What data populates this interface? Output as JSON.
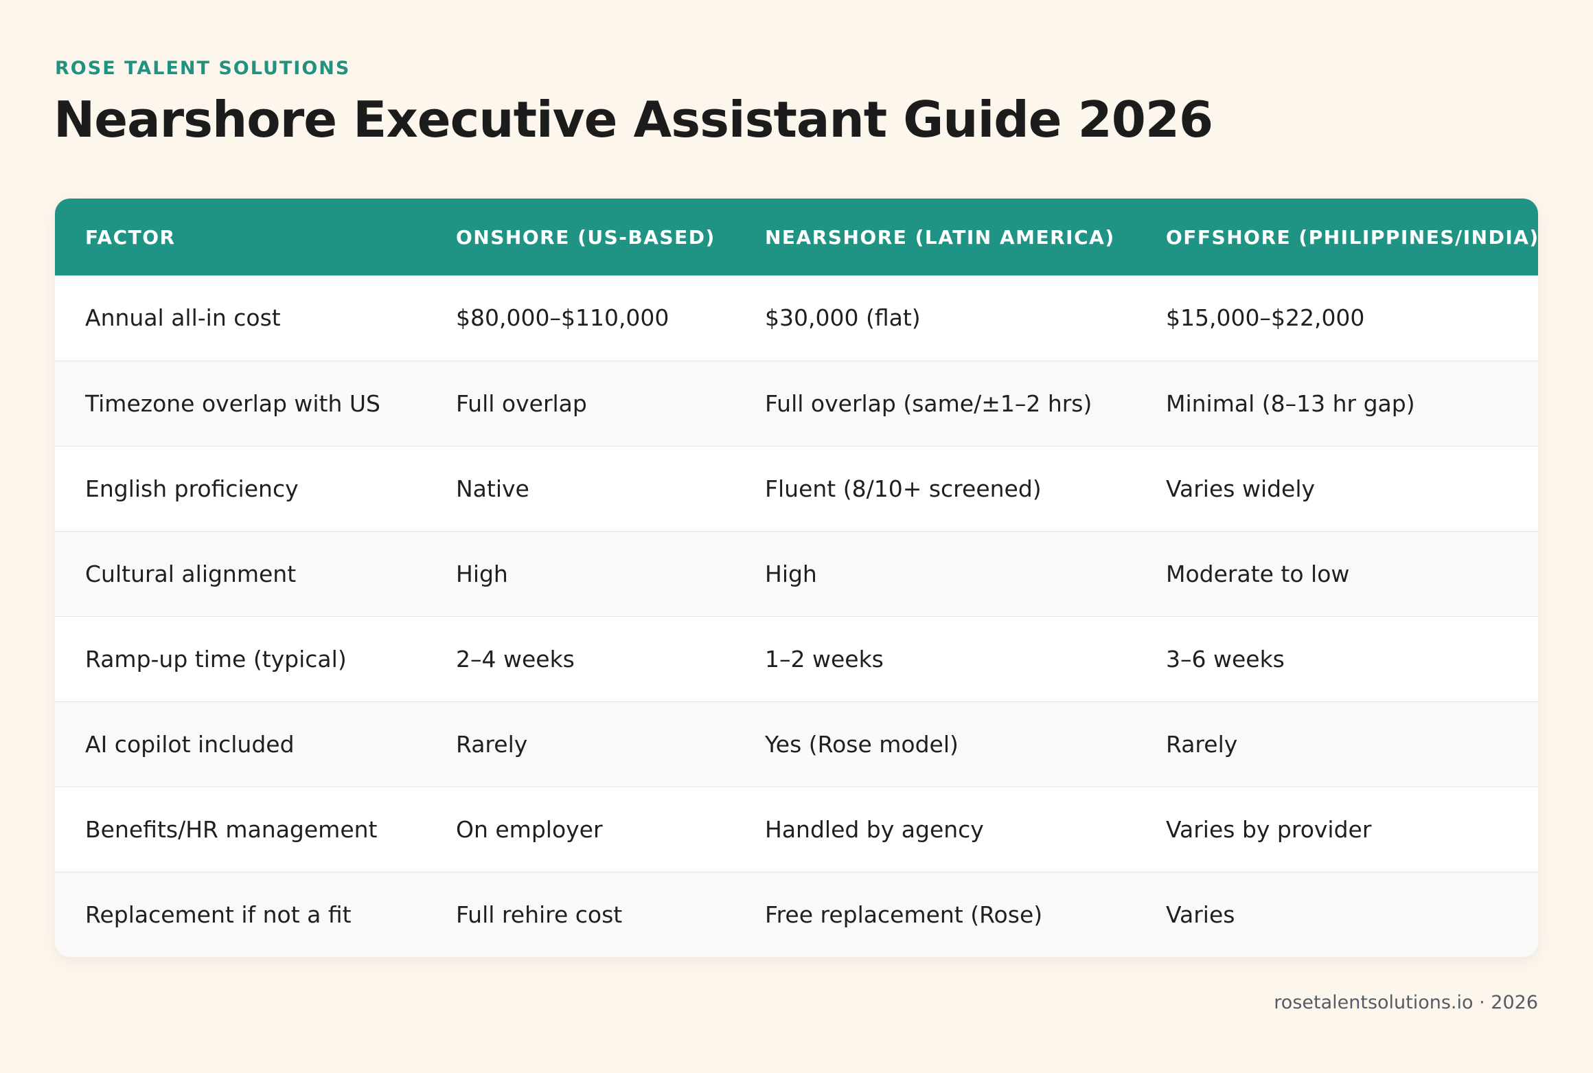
{
  "brand": "ROSE TALENT SOLUTIONS",
  "title": "Nearshore Executive Assistant Guide 2026",
  "colors": {
    "background": "#fdf6ed",
    "accent": "#1f9485",
    "brand_text": "#21927f"
  },
  "table": {
    "headers": [
      "FACTOR",
      "ONSHORE (US-BASED)",
      "NEARSHORE (LATIN AMERICA)",
      "OFFSHORE (PHILIPPINES/INDIA)"
    ],
    "rows": [
      [
        "Annual all-in cost",
        "$80,000–$110,000",
        "$30,000 (flat)",
        "$15,000–$22,000"
      ],
      [
        "Timezone overlap with US",
        "Full overlap",
        "Full overlap (same/±1–2 hrs)",
        "Minimal (8–13 hr gap)"
      ],
      [
        "English proficiency",
        "Native",
        "Fluent (8/10+ screened)",
        "Varies widely"
      ],
      [
        "Cultural alignment",
        "High",
        "High",
        "Moderate to low"
      ],
      [
        "Ramp-up time (typical)",
        "2–4 weeks",
        "1–2 weeks",
        "3–6 weeks"
      ],
      [
        "AI copilot included",
        "Rarely",
        "Yes (Rose model)",
        "Rarely"
      ],
      [
        "Benefits/HR management",
        "On employer",
        "Handled by agency",
        "Varies by provider"
      ],
      [
        "Replacement if not a fit",
        "Full rehire cost",
        "Free replacement (Rose)",
        "Varies"
      ]
    ]
  },
  "footer": "rosetalentsolutions.io · 2026"
}
